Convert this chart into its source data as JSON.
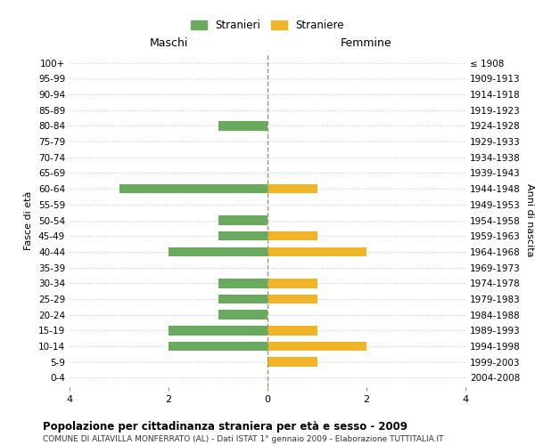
{
  "age_groups": [
    "100+",
    "95-99",
    "90-94",
    "85-89",
    "80-84",
    "75-79",
    "70-74",
    "65-69",
    "60-64",
    "55-59",
    "50-54",
    "45-49",
    "40-44",
    "35-39",
    "30-34",
    "25-29",
    "20-24",
    "15-19",
    "10-14",
    "5-9",
    "0-4"
  ],
  "birth_years": [
    "≤ 1908",
    "1909-1913",
    "1914-1918",
    "1919-1923",
    "1924-1928",
    "1929-1933",
    "1934-1938",
    "1939-1943",
    "1944-1948",
    "1949-1953",
    "1954-1958",
    "1959-1963",
    "1964-1968",
    "1969-1973",
    "1974-1978",
    "1979-1983",
    "1984-1988",
    "1989-1993",
    "1994-1998",
    "1999-2003",
    "2004-2008"
  ],
  "maschi": [
    0,
    0,
    0,
    0,
    1,
    0,
    0,
    0,
    3,
    0,
    1,
    1,
    2,
    0,
    1,
    1,
    1,
    2,
    2,
    0,
    0
  ],
  "femmine": [
    0,
    0,
    0,
    0,
    0,
    0,
    0,
    0,
    1,
    0,
    0,
    1,
    2,
    0,
    1,
    1,
    0,
    1,
    2,
    1,
    0
  ],
  "color_maschi": "#6aaa5e",
  "color_femmine": "#f0b429",
  "title": "Popolazione per cittadinanza straniera per età e sesso - 2009",
  "subtitle": "COMUNE DI ALTAVILLA MONFERRATO (AL) - Dati ISTAT 1° gennaio 2009 - Elaborazione TUTTITALIA.IT",
  "legend_maschi": "Stranieri",
  "legend_femmine": "Straniere",
  "xlabel_left": "Maschi",
  "xlabel_right": "Femmine",
  "ylabel_left": "Fasce di età",
  "ylabel_right": "Anni di nascita",
  "xlim": 4,
  "background_color": "#ffffff",
  "grid_color": "#cccccc"
}
